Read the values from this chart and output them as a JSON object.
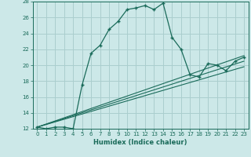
{
  "xlabel": "Humidex (Indice chaleur)",
  "bg_color": "#cce8e8",
  "grid_color": "#aacece",
  "line_color": "#1a6b5a",
  "xlim": [
    -0.5,
    23.5
  ],
  "ylim": [
    12,
    28
  ],
  "yticks": [
    12,
    14,
    16,
    18,
    20,
    22,
    24,
    26,
    28
  ],
  "xticks": [
    0,
    1,
    2,
    3,
    4,
    5,
    6,
    7,
    8,
    9,
    10,
    11,
    12,
    13,
    14,
    15,
    16,
    17,
    18,
    19,
    20,
    21,
    22,
    23
  ],
  "curve1_x": [
    0,
    1,
    2,
    3,
    4,
    5,
    6,
    7,
    8,
    9,
    10,
    11,
    12,
    13,
    14,
    15,
    16,
    17,
    18,
    19,
    20,
    21,
    22,
    23
  ],
  "curve1_y": [
    12.2,
    12.0,
    12.2,
    12.2,
    12.0,
    17.5,
    21.5,
    22.5,
    24.5,
    25.5,
    27.0,
    27.2,
    27.5,
    27.0,
    27.8,
    23.5,
    22.0,
    18.8,
    18.5,
    20.2,
    20.0,
    19.3,
    20.5,
    21.0
  ],
  "line2_x": [
    0,
    23
  ],
  "line2_y": [
    12.2,
    21.2
  ],
  "line3_x": [
    0,
    23
  ],
  "line3_y": [
    12.2,
    20.5
  ],
  "line4_x": [
    0,
    23
  ],
  "line4_y": [
    12.2,
    19.8
  ]
}
